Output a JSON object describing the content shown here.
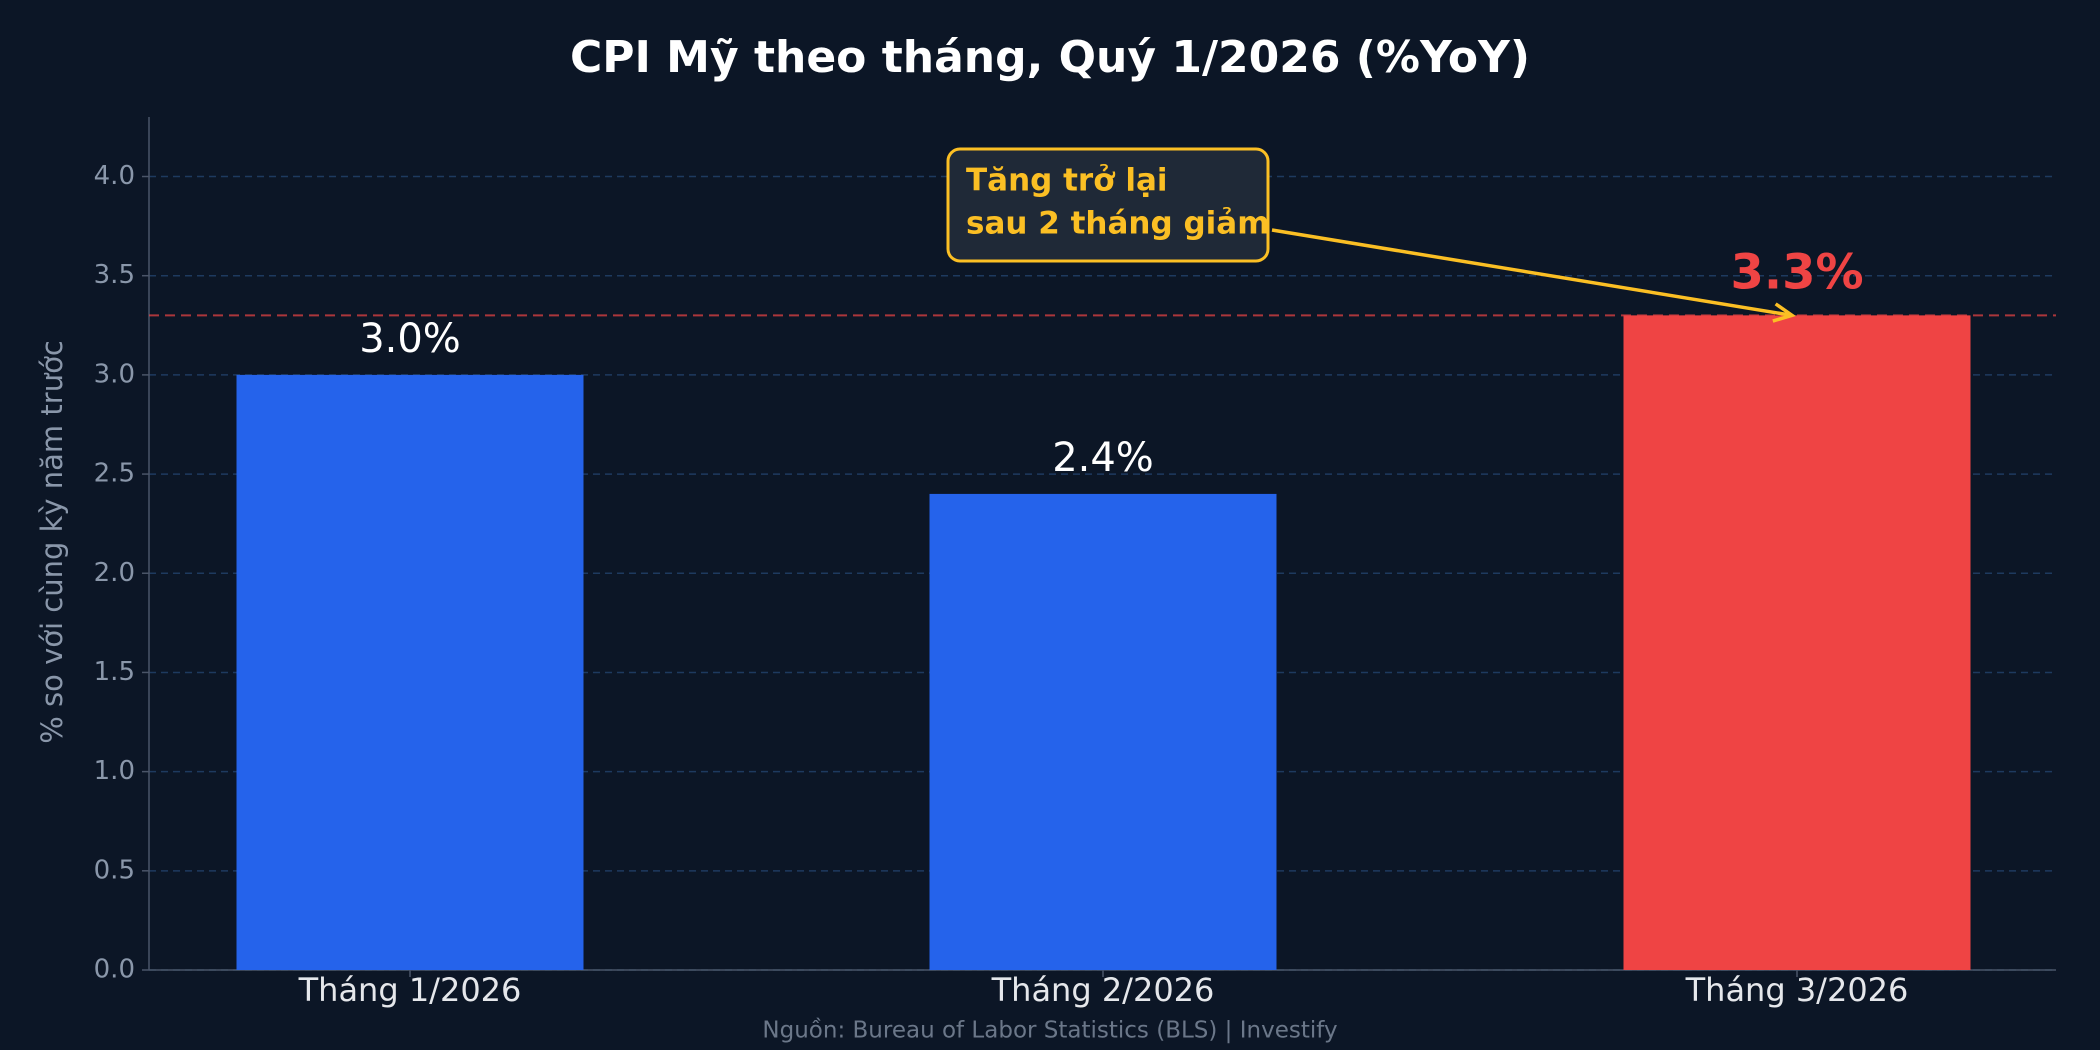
{
  "chart_data": {
    "type": "bar",
    "title": "CPI Mỹ theo tháng, Quý 1/2026 (%YoY)",
    "y_axis_label": "% so với cùng kỳ năm trước",
    "categories": [
      "Tháng 1/2026",
      "Tháng 2/2026",
      "Tháng 3/2026"
    ],
    "values": [
      3.0,
      2.4,
      3.3
    ],
    "value_labels": [
      "3.0%",
      "2.4%",
      "3.3%"
    ],
    "colors": [
      "#2563eb",
      "#2563eb",
      "#ef4444"
    ],
    "value_label_colors": [
      "#ffffff",
      "#ffffff",
      "#ef4444"
    ],
    "reference_line": 3.3,
    "reference_line_color": "#ef4444",
    "ylim": [
      0,
      4.3
    ],
    "yticks": [
      {
        "value": 0,
        "label": "0.0"
      },
      0.5,
      {
        "value": 1,
        "label": "1.0"
      },
      1.5,
      {
        "value": 2,
        "label": "2.0"
      },
      2.5,
      {
        "value": 3,
        "label": "3.0"
      },
      3.5,
      {
        "value": 4,
        "label": "4.0"
      }
    ],
    "grid": true,
    "annotation": {
      "lines": [
        "Tăng trở lại",
        "sau 2 tháng giảm"
      ],
      "color": "#fbbf24"
    },
    "source": "Nguồn: Bureau of Labor Statistics (BLS) | Investify"
  }
}
